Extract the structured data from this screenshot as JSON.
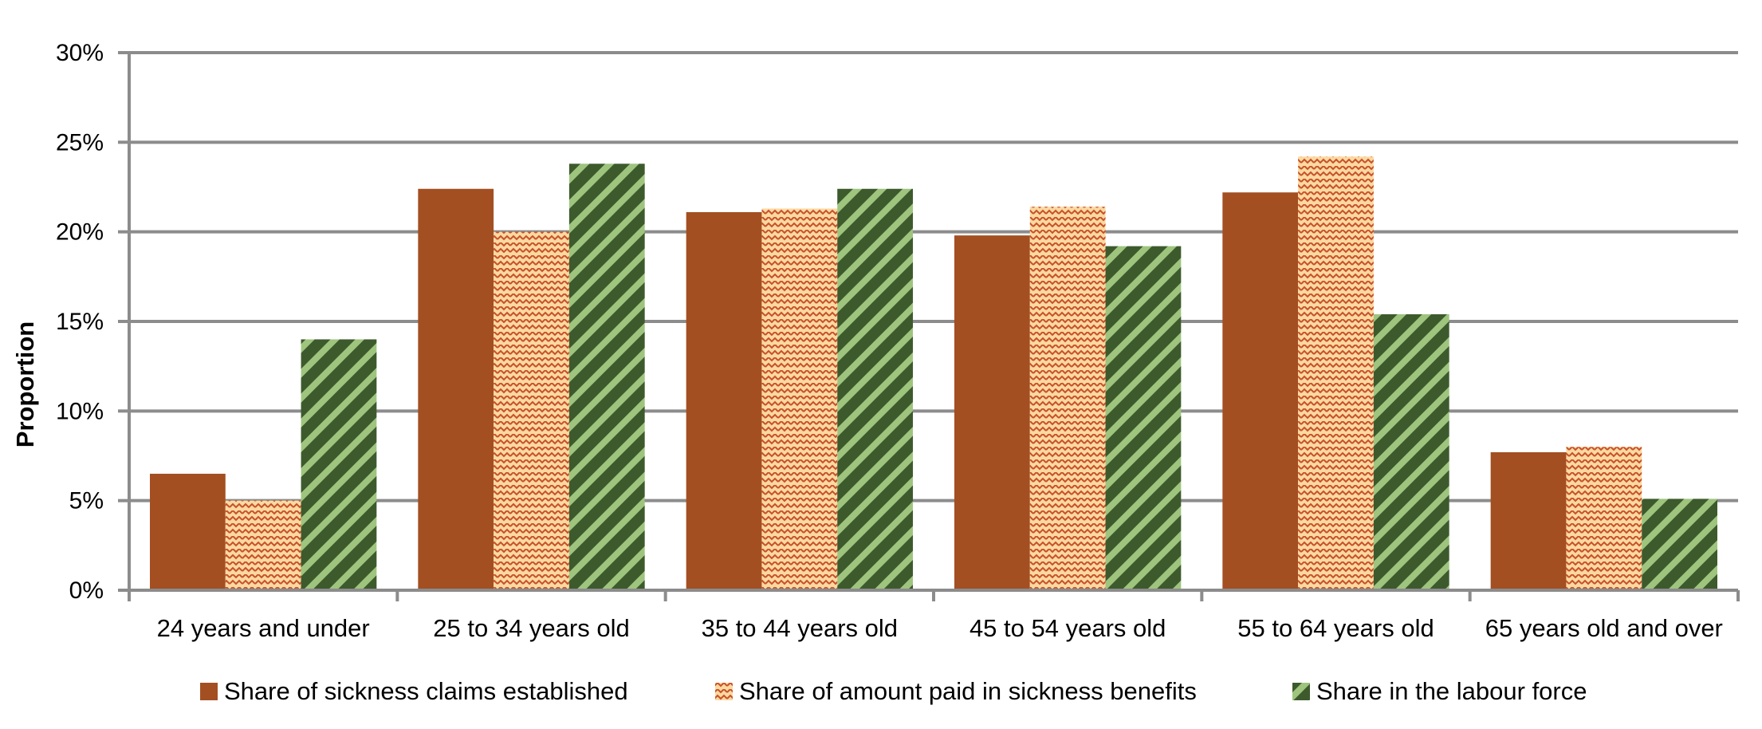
{
  "chart_data": {
    "type": "bar",
    "title": "",
    "xlabel": "",
    "ylabel": "Proportion",
    "ylim": [
      0,
      30
    ],
    "yticks": [
      "0%",
      "5%",
      "10%",
      "15%",
      "20%",
      "25%",
      "30%"
    ],
    "ytick_values": [
      0,
      5,
      10,
      15,
      20,
      25,
      30
    ],
    "grid": true,
    "legend": "bottom",
    "categories": [
      "24 years and under",
      "25 to 34 years old",
      "35 to 44 years old",
      "45 to 54 years old",
      "55 to 64 years old",
      "65 years old and over"
    ],
    "series": [
      {
        "name": "Share of sickness claims established",
        "values": [
          6.5,
          22.4,
          21.1,
          19.8,
          22.2,
          7.7
        ],
        "color": "#a34f22",
        "pattern": "solid"
      },
      {
        "name": "Share of amount paid in sickness benefits",
        "values": [
          5.0,
          20.0,
          21.3,
          21.4,
          24.2,
          8.0
        ],
        "color": "#fbd9a0",
        "pattern": "dots"
      },
      {
        "name": "Share in the labour force",
        "values": [
          14.0,
          23.8,
          22.4,
          19.2,
          15.4,
          5.1
        ],
        "color": "#3d5a2c",
        "pattern": "stripes"
      }
    ]
  }
}
